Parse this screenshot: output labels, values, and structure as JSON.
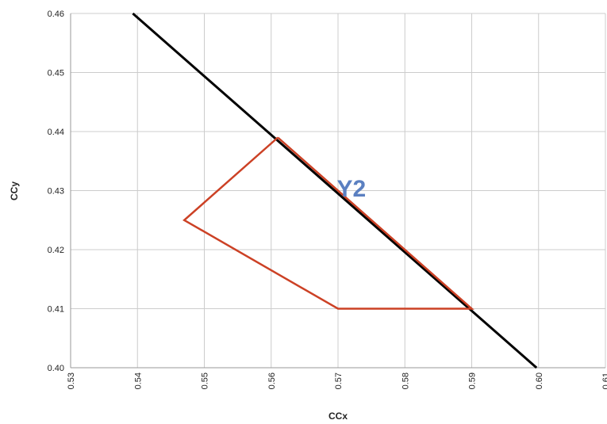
{
  "chart_data": {
    "type": "line",
    "xlabel": "CCx",
    "ylabel": "CCy",
    "xlim": [
      0.53,
      0.61
    ],
    "ylim": [
      0.4,
      0.46
    ],
    "x_ticks": [
      "0.53",
      "0.54",
      "0.55",
      "0.56",
      "0.57",
      "0.58",
      "0.59",
      "0.60",
      "0.61"
    ],
    "y_ticks": [
      "0.40",
      "0.41",
      "0.42",
      "0.43",
      "0.44",
      "0.45",
      "0.46"
    ],
    "grid": true,
    "series": [
      {
        "color": "#000000",
        "points": [
          [
            0.5393,
            0.46
          ],
          [
            0.5997,
            0.4
          ]
        ]
      },
      {
        "color": "#cc4125",
        "points": [
          [
            0.561,
            0.439
          ],
          [
            0.59,
            0.41
          ],
          [
            0.57,
            0.41
          ],
          [
            0.547,
            0.425
          ],
          [
            0.561,
            0.439
          ]
        ]
      }
    ],
    "annotations": [
      {
        "text": "Y2",
        "x": 0.572,
        "y": 0.429,
        "color": "#5b80c1"
      }
    ]
  }
}
